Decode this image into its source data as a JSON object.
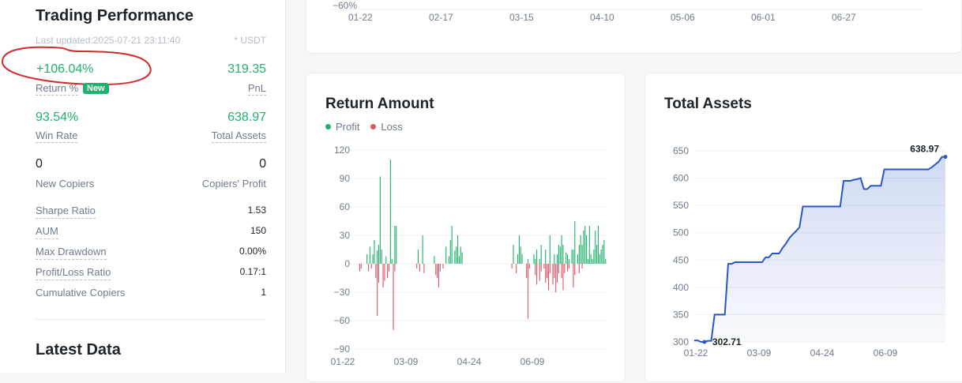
{
  "left": {
    "title": "Trading Performance",
    "last_updated": "Last updated:2025-07-21 23:11:40",
    "unit": "* USDT",
    "return_pct": "+106.04%",
    "return_label": "Return %",
    "new_badge": "New",
    "pnl": "319.35",
    "pnl_label": "PnL",
    "win_rate": "93.54%",
    "win_rate_label": "Win Rate",
    "total_assets": "638.97",
    "total_assets_label": "Total Assets",
    "new_copiers": "0",
    "new_copiers_label": "New Copiers",
    "copiers_profit": "0",
    "copiers_profit_label": "Copiers' Profit",
    "stats": [
      {
        "label": "Sharpe Ratio",
        "value": "1.53"
      },
      {
        "label": "AUM",
        "value": "150"
      },
      {
        "label": "Max Drawdown",
        "value": "0.00%"
      },
      {
        "label": "Profit/Loss Ratio",
        "value": "0.17:1"
      },
      {
        "label": "Cumulative Copiers",
        "value": "1"
      }
    ],
    "latest_title": "Latest Data"
  },
  "top_chart": {
    "y_label": "−60%",
    "x_ticks": [
      "01-22",
      "02-17",
      "03-15",
      "04-10",
      "05-06",
      "06-01",
      "06-27"
    ]
  },
  "return_chart": {
    "title": "Return Amount",
    "legend_profit": "Profit",
    "legend_loss": "Loss"
  },
  "assets_chart": {
    "title": "Total Assets",
    "start_label": "302.71",
    "end_label": "638.97"
  },
  "colors": {
    "profit": "#20b26c",
    "loss": "#e05565",
    "line": "#2a56c6",
    "annotation": "#d42a2a"
  },
  "chart_data": [
    {
      "type": "bar",
      "title": "Return Amount",
      "series": [
        {
          "name": "Profit",
          "values": [
            0,
            0,
            0,
            0,
            0,
            0,
            10,
            0,
            18,
            0,
            10,
            25,
            0,
            14,
            20,
            92,
            15,
            0,
            0,
            8,
            0,
            0,
            110,
            5,
            0,
            40,
            40,
            0,
            0,
            0,
            0,
            0,
            0,
            0,
            0,
            0,
            0,
            0,
            0,
            0,
            0,
            15,
            0,
            0,
            30,
            0,
            0,
            0,
            0,
            0,
            0,
            0,
            8,
            0,
            0,
            0,
            0,
            0,
            0,
            0,
            18,
            0,
            8,
            25,
            40,
            0,
            14,
            18,
            30,
            8,
            18,
            12,
            0,
            0,
            0,
            0,
            0,
            0,
            0,
            0,
            0,
            0,
            0,
            0,
            0,
            0,
            0,
            0,
            0,
            0,
            0,
            0,
            0,
            0,
            0,
            0,
            0,
            0,
            0,
            0,
            0,
            0,
            0,
            0,
            0,
            0,
            20,
            0,
            0,
            10,
            30,
            18,
            10,
            0,
            0,
            0,
            5,
            0,
            0,
            0,
            10,
            5,
            15,
            0,
            5,
            20,
            0,
            0,
            15,
            0,
            0,
            30,
            0,
            0,
            10,
            0,
            10,
            20,
            18,
            30,
            20,
            0,
            12,
            10,
            5,
            0,
            15,
            15,
            45,
            0,
            10,
            20,
            30,
            20,
            35,
            40,
            30,
            5,
            40,
            10,
            5,
            15,
            35,
            20,
            40,
            10,
            15,
            20,
            25,
            5
          ]
        },
        {
          "name": "Loss",
          "values": [
            0,
            -8,
            -5,
            0,
            0,
            0,
            0,
            -8,
            0,
            -5,
            0,
            0,
            -15,
            -55,
            -20,
            0,
            0,
            -25,
            -18,
            0,
            -15,
            -8,
            0,
            0,
            -70,
            -8,
            0,
            0,
            0,
            0,
            0,
            0,
            0,
            0,
            0,
            0,
            0,
            0,
            0,
            0,
            -5,
            0,
            -8,
            0,
            0,
            -10,
            0,
            0,
            0,
            0,
            0,
            0,
            0,
            -12,
            -15,
            -25,
            -8,
            0,
            -5,
            0,
            0,
            0,
            0,
            0,
            0,
            0,
            0,
            0,
            0,
            0,
            0,
            0,
            0,
            0,
            0,
            0,
            0,
            0,
            0,
            0,
            0,
            0,
            0,
            0,
            0,
            0,
            0,
            0,
            0,
            0,
            0,
            0,
            0,
            0,
            0,
            0,
            0,
            0,
            0,
            0,
            0,
            0,
            0,
            0,
            0,
            -5,
            0,
            0,
            -10,
            0,
            0,
            0,
            0,
            0,
            0,
            -15,
            -58,
            -5,
            0,
            0,
            0,
            -12,
            -22,
            0,
            -18,
            -8,
            0,
            -5,
            -20,
            -15,
            -28,
            -10,
            0,
            -22,
            -15,
            -30,
            -20,
            -10,
            0,
            -15,
            -28,
            -10,
            0,
            -8,
            -5,
            0,
            0,
            -25,
            -12,
            0,
            0,
            -10,
            0,
            -5,
            0,
            0,
            0,
            0,
            0,
            0,
            0,
            0,
            0,
            0,
            0,
            0,
            0,
            0,
            0,
            0,
            0,
            0,
            0,
            0
          ]
        }
      ],
      "ylim": [
        -90,
        120
      ],
      "y_ticks": [
        "120",
        "90",
        "60",
        "30",
        "0",
        "−30",
        "−60",
        "−90"
      ],
      "x_ticks": [
        "01-22",
        "03-09",
        "04-24",
        "06-09"
      ]
    },
    {
      "type": "line",
      "title": "Total Assets",
      "values": [
        302.71,
        302.71,
        300,
        300,
        302,
        302,
        350,
        350,
        350,
        350,
        443,
        443,
        446,
        446,
        446,
        446,
        446,
        446,
        446,
        446,
        446,
        455,
        455,
        462,
        462,
        462,
        472,
        480,
        490,
        497,
        503,
        510,
        548,
        548,
        548,
        548,
        548,
        548,
        548,
        548,
        548,
        548,
        548,
        548,
        595,
        595,
        595,
        597,
        598,
        600,
        580,
        580,
        586,
        586,
        586,
        586,
        616,
        616,
        616,
        616,
        616,
        616,
        616,
        616,
        616,
        616,
        616,
        616,
        616,
        616,
        620,
        625,
        630,
        638.97,
        638.97
      ],
      "ylim": [
        300,
        650
      ],
      "y_ticks": [
        "650",
        "600",
        "550",
        "500",
        "450",
        "400",
        "350",
        "300"
      ],
      "x_ticks": [
        "01-22",
        "03-09",
        "04-24",
        "06-09"
      ]
    }
  ]
}
